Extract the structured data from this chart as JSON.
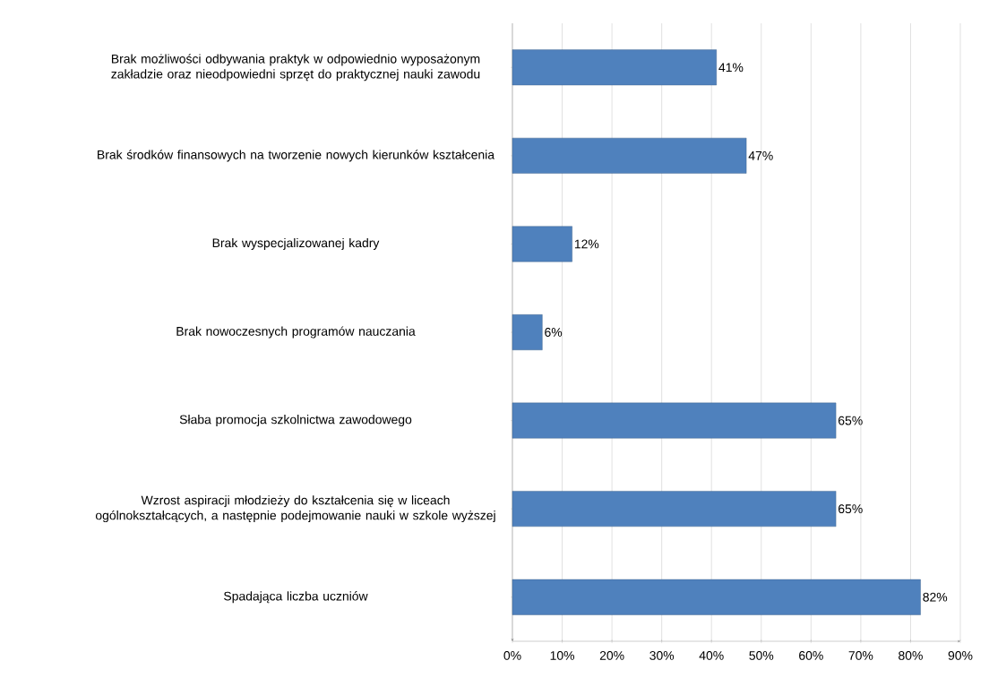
{
  "chart_data": {
    "type": "bar",
    "orientation": "horizontal",
    "categories": [
      "Brak możliwości odbywania praktyk w odpowiednio wyposażonym zakładzie oraz nieodpowiedni sprzęt do praktycznej nauki zawodu",
      "Brak środków finansowych na tworzenie nowych kierunków kształcenia",
      "Brak wyspecjalizowanej kadry",
      "Brak nowoczesnych programów nauczania",
      "Słaba promocja szkolnictwa zawodowego",
      "Wzrost aspiracji młodzieży do kształcenia się w liceach ogólnokształcących, a następnie podejmowanie nauki w szkole wyższej",
      "Spadająca liczba uczniów"
    ],
    "values": [
      41,
      47,
      12,
      6,
      65,
      65,
      82
    ],
    "value_labels": [
      "41%",
      "47%",
      "12%",
      "6%",
      "65%",
      "65%",
      "82%"
    ],
    "color": "#4f81bd",
    "xlim": [
      0,
      90
    ],
    "xticks": [
      {
        "value": 0,
        "label": "0%"
      },
      {
        "value": 10,
        "label": "10%"
      },
      {
        "value": 20,
        "label": "20%"
      },
      {
        "value": 30,
        "label": "30%"
      },
      {
        "value": 40,
        "label": "40%"
      },
      {
        "value": 50,
        "label": "50%"
      },
      {
        "value": 60,
        "label": "60%"
      },
      {
        "value": 70,
        "label": "70%"
      },
      {
        "value": 80,
        "label": "80%"
      },
      {
        "value": 90,
        "label": "90%"
      }
    ],
    "grid": "x"
  }
}
